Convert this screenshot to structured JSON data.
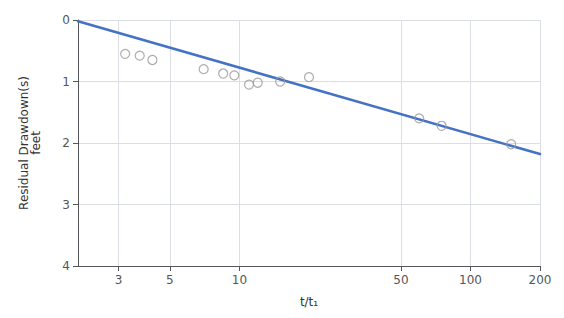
{
  "chart_data": {
    "type": "scatter",
    "xlabel": "t/t₁",
    "ylabel": "Residual Drawdown(s)\nfeet",
    "log": "x",
    "grid": true,
    "xlim": [
      2.0,
      200.0
    ],
    "ylim": [
      4.0,
      0.0
    ],
    "xticks": [
      3,
      5,
      10,
      50,
      100,
      200
    ],
    "yticks": [
      0,
      1,
      2,
      3,
      4
    ],
    "series": [
      {
        "type": "line",
        "color": "#4472C4",
        "x": [
          2.0,
          200.0
        ],
        "values": [
          0.02,
          2.18
        ]
      },
      {
        "type": "scatter",
        "color": "#999999",
        "marker": "circle",
        "x": [
          3.2,
          3.7,
          4.2,
          7.0,
          8.5,
          9.5,
          11.0,
          12.0,
          15.0,
          20.0,
          60.0,
          75.0,
          150.0
        ],
        "values": [
          0.55,
          0.58,
          0.65,
          0.8,
          0.87,
          0.9,
          1.05,
          1.02,
          1.0,
          0.93,
          1.6,
          1.72,
          2.02
        ]
      }
    ]
  }
}
